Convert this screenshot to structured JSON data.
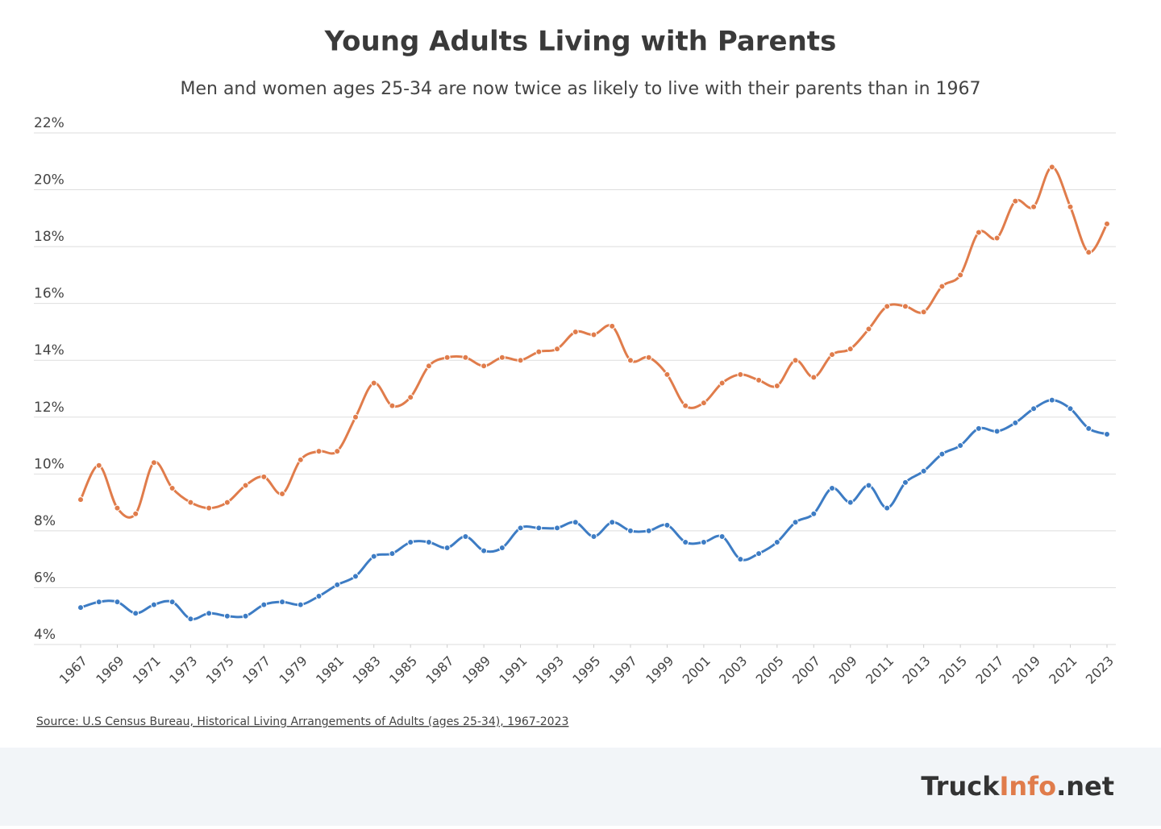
{
  "chart_data": {
    "type": "line",
    "title": "Young Adults Living with Parents",
    "subtitle": "Men and women ages 25-34 are now twice as likely to live with their parents than in 1967",
    "x": [
      1967,
      1968,
      1969,
      1970,
      1971,
      1972,
      1973,
      1974,
      1975,
      1976,
      1977,
      1978,
      1979,
      1980,
      1981,
      1982,
      1983,
      1984,
      1985,
      1986,
      1987,
      1988,
      1989,
      1990,
      1991,
      1992,
      1993,
      1994,
      1995,
      1996,
      1997,
      1998,
      1999,
      2000,
      2001,
      2002,
      2003,
      2004,
      2005,
      2006,
      2007,
      2008,
      2009,
      2010,
      2011,
      2012,
      2013,
      2014,
      2015,
      2016,
      2017,
      2018,
      2019,
      2020,
      2021,
      2022,
      2023
    ],
    "series": [
      {
        "color": "#e07c4b",
        "values": [
          9.1,
          10.3,
          8.8,
          8.6,
          10.4,
          9.5,
          9.0,
          8.8,
          9.0,
          9.6,
          9.9,
          9.3,
          10.5,
          10.8,
          10.8,
          12.0,
          13.2,
          12.4,
          12.7,
          13.8,
          14.1,
          14.1,
          13.8,
          14.1,
          14.0,
          14.3,
          14.4,
          15.0,
          14.9,
          15.2,
          14.0,
          14.1,
          13.5,
          12.4,
          12.5,
          13.2,
          13.5,
          13.3,
          13.1,
          14.0,
          13.4,
          14.2,
          14.4,
          15.1,
          15.9,
          15.9,
          15.7,
          16.6,
          17.0,
          18.5,
          18.3,
          19.6,
          19.4,
          20.8,
          19.4,
          17.8,
          18.8
        ]
      },
      {
        "color": "#3d7cc4",
        "values": [
          5.3,
          5.5,
          5.5,
          5.1,
          5.4,
          5.5,
          4.9,
          5.1,
          5.0,
          5.0,
          5.4,
          5.5,
          5.4,
          5.7,
          6.1,
          6.4,
          7.1,
          7.2,
          7.6,
          7.6,
          7.4,
          7.8,
          7.3,
          7.4,
          8.1,
          8.1,
          8.1,
          8.3,
          7.8,
          8.3,
          8.0,
          8.0,
          8.2,
          7.6,
          7.6,
          7.8,
          7.0,
          7.2,
          7.6,
          8.3,
          8.6,
          9.5,
          9.0,
          9.6,
          8.8,
          9.7,
          10.1,
          10.7,
          11.0,
          11.6,
          11.5,
          11.8,
          12.3,
          12.6,
          12.3,
          11.6,
          11.4
        ]
      }
    ],
    "xlim": [
      1967,
      2023
    ],
    "xticks": [
      1967,
      1969,
      1971,
      1973,
      1975,
      1977,
      1979,
      1981,
      1983,
      1985,
      1987,
      1989,
      1991,
      1993,
      1995,
      1997,
      1999,
      2001,
      2003,
      2005,
      2007,
      2009,
      2011,
      2013,
      2015,
      2017,
      2019,
      2021,
      2023
    ],
    "ylim": [
      4,
      22
    ],
    "yticks": [
      {
        "value": 4,
        "label": "4%"
      },
      {
        "value": 6,
        "label": "6%"
      },
      {
        "value": 8,
        "label": "8%"
      },
      {
        "value": 10,
        "label": "10%"
      },
      {
        "value": 12,
        "label": "12%"
      },
      {
        "value": 14,
        "label": "14%"
      },
      {
        "value": 16,
        "label": "16%"
      },
      {
        "value": 18,
        "label": "18%"
      },
      {
        "value": 20,
        "label": "20%"
      },
      {
        "value": 22,
        "label": "22%"
      }
    ],
    "grid": true,
    "source": "Source: U.S Census Bureau, Historical Living Arrangements of Adults (ages 25-34), 1967-2023"
  },
  "footer": {
    "logo": [
      "Truck",
      "Info",
      ".net"
    ]
  }
}
